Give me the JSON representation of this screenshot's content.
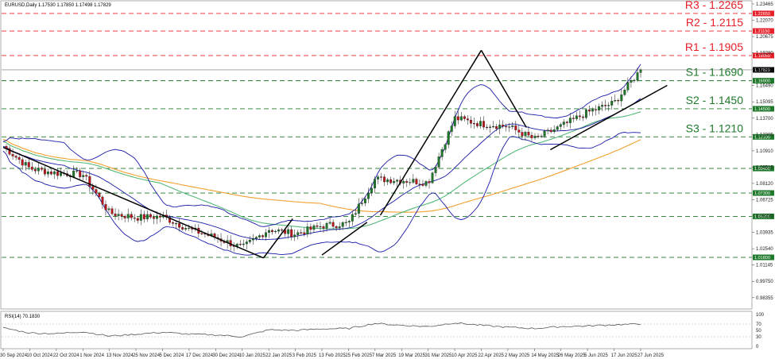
{
  "header": {
    "symbol_line": "EURUSD,Daily 1.17530 1.17850 1.17498 1.17829"
  },
  "rsi_header": "RSI(14) 70.1830",
  "colors": {
    "resistance": "#e8202a",
    "support": "#1e7a2a",
    "bollinger": "#1a1aa8",
    "ma_green": "#55b87a",
    "ma_orange": "#f2a030",
    "trend": "#000000",
    "bull": "#1e7a2a",
    "bear": "#c0141c",
    "current": "#000000"
  },
  "price_axis": {
    "labels": [
      "1.23465",
      "1.22070",
      "1.20675",
      "1.19280",
      "1.17885",
      "1.16490",
      "1.15095",
      "1.13700",
      "1.12305",
      "1.10910",
      "1.09515",
      "1.08120",
      "1.06725",
      "1.05330",
      "1.03935",
      "1.02540",
      "1.01145",
      "0.99750",
      "0.98355"
    ]
  },
  "rsi_axis": {
    "labels": [
      "100",
      "70",
      "50",
      "30",
      "0"
    ]
  },
  "date_axis": {
    "labels": [
      "30 Sep 2024",
      "10 Oct 2024",
      "22 Oct 2024",
      "1 Nov 2024",
      "13 Nov 2024",
      "25 Nov 2024",
      "5 Dec 2024",
      "17 Dec 2024",
      "30 Dec 2024",
      "10 Jan 2025",
      "22 Jan 2025",
      "3 Feb 2025",
      "13 Feb 2025",
      "25 Feb 2025",
      "7 Mar 2025",
      "19 Mar 2025",
      "31 Mar 2025",
      "10 Apr 2025",
      "22 Apr 2025",
      "2 May 2025",
      "14 May 2025",
      "26 May 2025",
      "5 Jun 2025",
      "17 Jun 2025",
      "27 Jun 2025"
    ]
  },
  "levels": [
    {
      "name": "R3",
      "label": "R3 - 1.2265",
      "box": "1.22650",
      "price": 1.2265,
      "kind": "resistance"
    },
    {
      "name": "R2",
      "label": "R2 - 1.2115",
      "box": "1.21150",
      "price": 1.2115,
      "kind": "resistance"
    },
    {
      "name": "R1",
      "label": "R1 - 1.1905",
      "box": "1.19050",
      "price": 1.1905,
      "kind": "resistance"
    },
    {
      "name": "S1",
      "label": "S1 - 1.1690",
      "box": "1.16900",
      "price": 1.169,
      "kind": "support"
    },
    {
      "name": "S2",
      "label": "S2 - 1.1450",
      "box": "1.14500",
      "price": 1.145,
      "kind": "support"
    },
    {
      "name": "S3",
      "label": "S3 - 1.1210",
      "box": "1.12100",
      "price": 1.121,
      "kind": "support"
    },
    {
      "name": "L4",
      "label": "",
      "box": "1.09400",
      "price": 1.094,
      "kind": "support"
    },
    {
      "name": "L5",
      "label": "",
      "box": "1.07300",
      "price": 1.073,
      "kind": "support"
    },
    {
      "name": "L6",
      "label": "",
      "box": "1.05300",
      "price": 1.053,
      "kind": "support"
    },
    {
      "name": "L7",
      "label": "",
      "box": "1.01800",
      "price": 1.018,
      "kind": "support"
    }
  ],
  "current_price": {
    "value": 1.17829,
    "box": "1.17829"
  },
  "chart_data": {
    "type": "line",
    "title": "EURUSD,Daily 1.17530 1.17850 1.17498 1.17829",
    "xlabel": "",
    "ylabel": "",
    "ylim": [
      0.9766,
      1.2346
    ],
    "x": [
      "30 Sep 2024",
      "10 Oct 2024",
      "22 Oct 2024",
      "1 Nov 2024",
      "13 Nov 2024",
      "25 Nov 2024",
      "5 Dec 2024",
      "17 Dec 2024",
      "30 Dec 2024",
      "10 Jan 2025",
      "22 Jan 2025",
      "3 Feb 2025",
      "13 Feb 2025",
      "25 Feb 2025",
      "7 Mar 2025",
      "19 Mar 2025",
      "31 Mar 2025",
      "10 Apr 2025",
      "22 Apr 2025",
      "2 May 2025",
      "14 May 2025",
      "26 May 2025",
      "5 Jun 2025",
      "17 Jun 2025",
      "27 Jun 2025"
    ],
    "series": [
      {
        "name": "",
        "values": [
          1.113,
          1.094,
          1.09,
          1.089,
          1.056,
          1.052,
          1.053,
          1.042,
          1.035,
          1.026,
          1.042,
          1.038,
          1.045,
          1.047,
          1.085,
          1.084,
          1.082,
          1.137,
          1.132,
          1.13,
          1.119,
          1.13,
          1.142,
          1.15,
          1.1783
        ]
      }
    ],
    "rsi": {
      "label": "RSI(14) 70.1830",
      "ylim": [
        0,
        100
      ],
      "values": [
        58,
        42,
        40,
        46,
        32,
        38,
        44,
        38,
        36,
        30,
        52,
        50,
        55,
        56,
        72,
        66,
        62,
        74,
        66,
        60,
        56,
        62,
        64,
        68,
        70
      ]
    }
  }
}
